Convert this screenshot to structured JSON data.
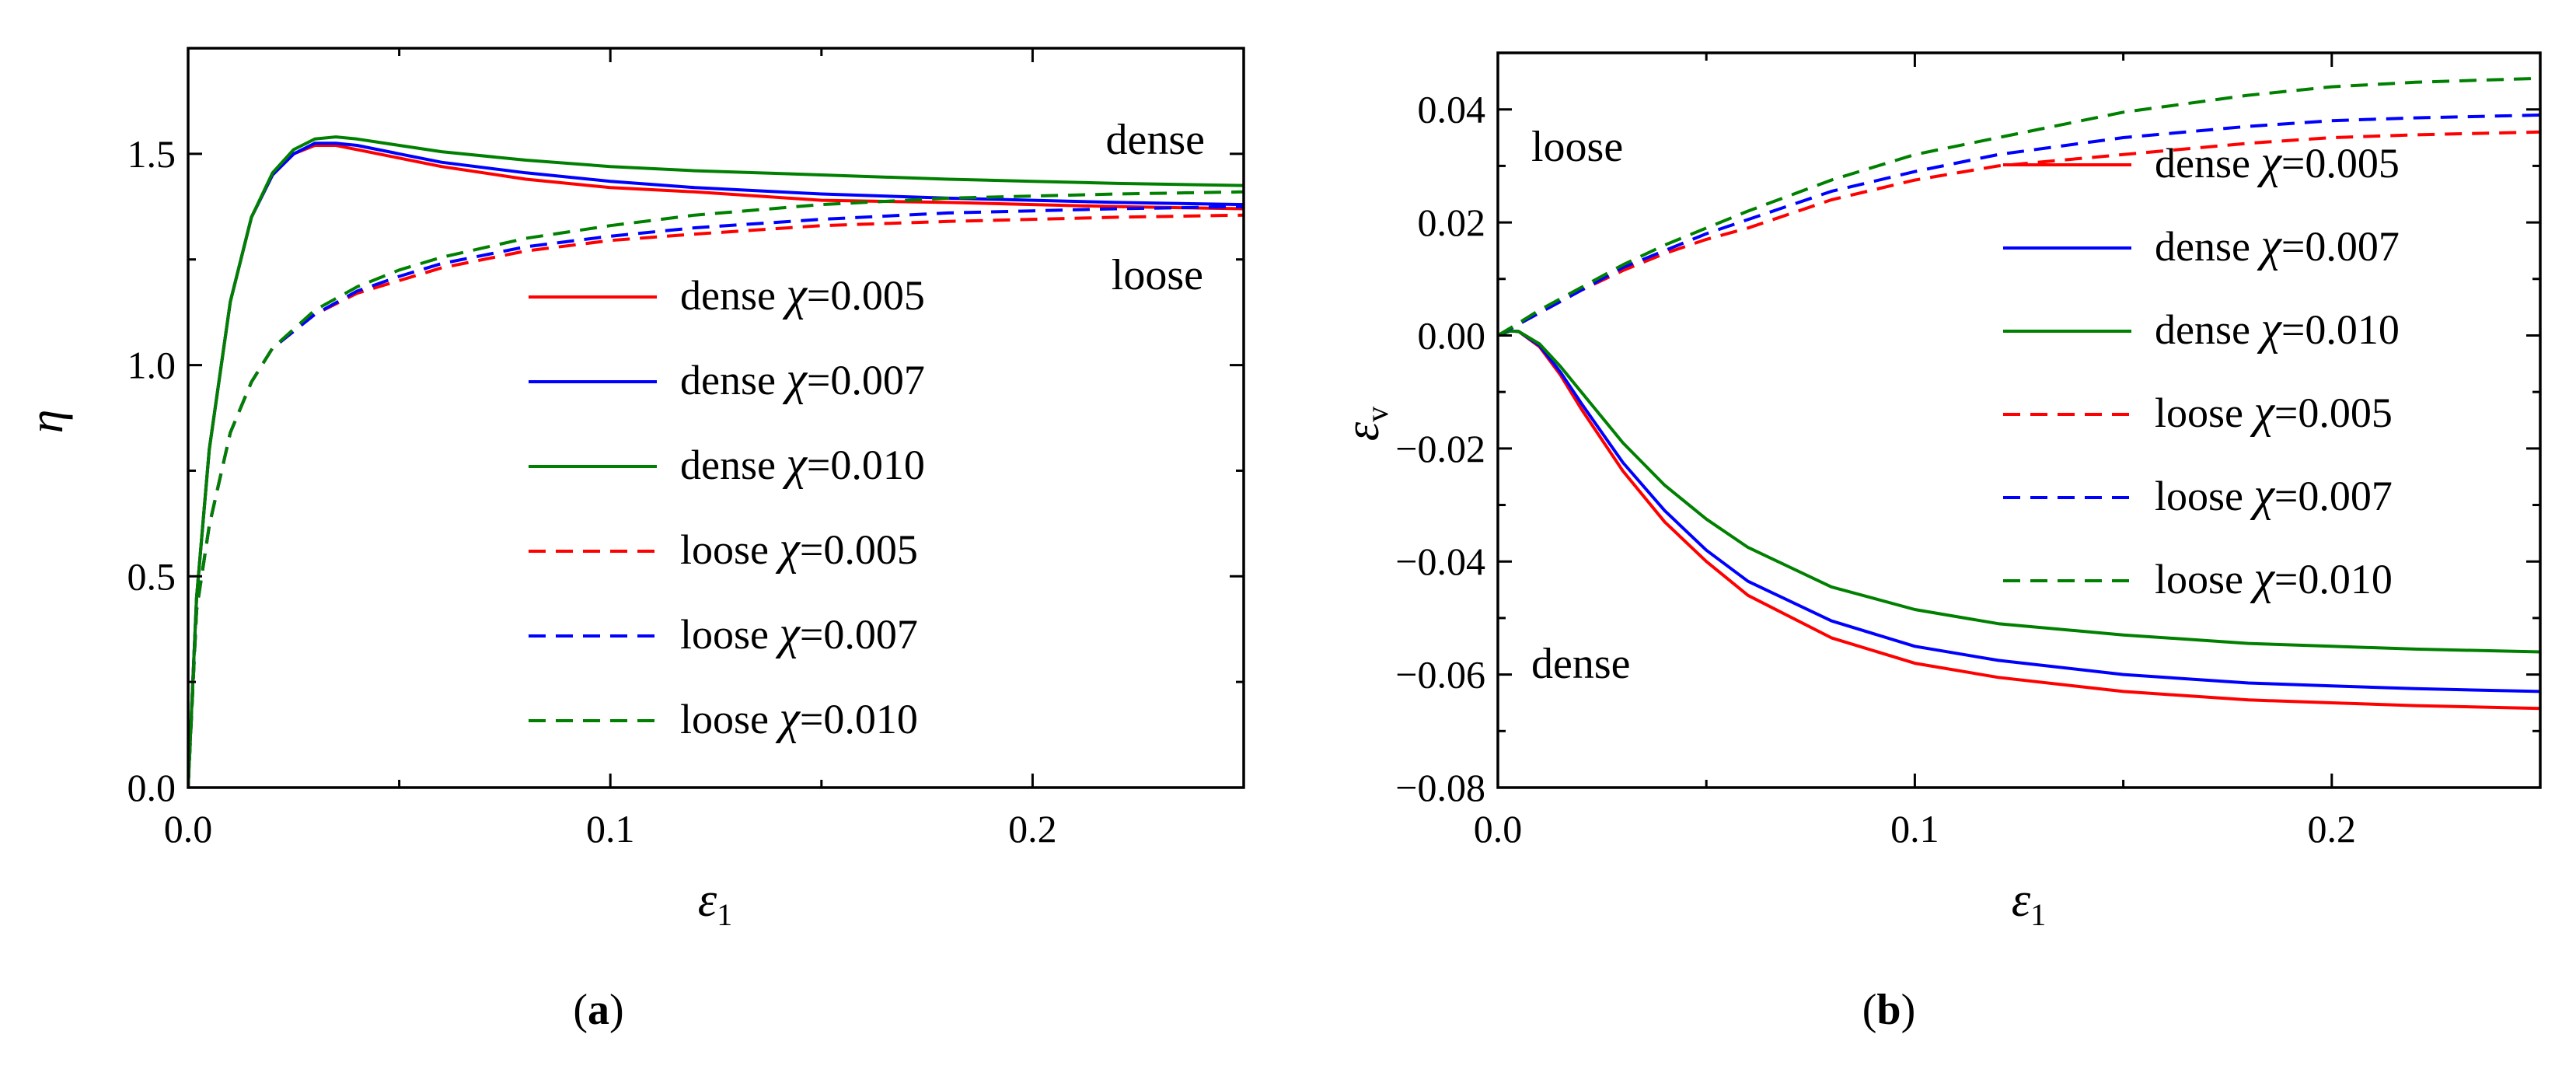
{
  "chart_data": [
    {
      "type": "line",
      "panel_label": "a",
      "xlabel_symbol": "ε",
      "xlabel_sub": "1",
      "ylabel_symbol": "η",
      "ylabel_sub": "",
      "xlim": [
        0,
        0.25
      ],
      "ylim": [
        0,
        1.75
      ],
      "xticks": [
        0,
        0.1,
        0.2
      ],
      "xtick_labels": [
        "0.0",
        "0.1",
        "0.2"
      ],
      "yticks": [
        0,
        0.5,
        1.0,
        1.5
      ],
      "ytick_labels": [
        "0.0",
        "0.5",
        "1.0",
        "1.5"
      ],
      "legend_position": "center-right",
      "annotations": [
        {
          "text": "dense",
          "x": 0.22,
          "y": 1.6
        },
        {
          "text": "loose",
          "x": 0.22,
          "y": 1.25
        }
      ],
      "series": [
        {
          "name": "dense χ=0.005",
          "prefix": "dense",
          "chi": "=0.005",
          "color": "#ff0000",
          "dash": "solid",
          "x": [
            0,
            0.002,
            0.005,
            0.01,
            0.015,
            0.02,
            0.025,
            0.03,
            0.035,
            0.04,
            0.05,
            0.06,
            0.08,
            0.1,
            0.12,
            0.15,
            0.18,
            0.2,
            0.22,
            0.25
          ],
          "y": [
            0,
            0.45,
            0.8,
            1.15,
            1.35,
            1.45,
            1.5,
            1.52,
            1.52,
            1.51,
            1.49,
            1.47,
            1.44,
            1.42,
            1.41,
            1.39,
            1.385,
            1.38,
            1.375,
            1.37
          ]
        },
        {
          "name": "dense χ=0.007",
          "prefix": "dense",
          "chi": "=0.007",
          "color": "#0000ff",
          "dash": "solid",
          "x": [
            0,
            0.002,
            0.005,
            0.01,
            0.015,
            0.02,
            0.025,
            0.03,
            0.035,
            0.04,
            0.05,
            0.06,
            0.08,
            0.1,
            0.12,
            0.15,
            0.18,
            0.2,
            0.22,
            0.25
          ],
          "y": [
            0,
            0.45,
            0.8,
            1.15,
            1.35,
            1.45,
            1.5,
            1.525,
            1.525,
            1.52,
            1.5,
            1.48,
            1.455,
            1.435,
            1.42,
            1.405,
            1.395,
            1.39,
            1.385,
            1.38
          ]
        },
        {
          "name": "dense χ=0.010",
          "prefix": "dense",
          "chi": "=0.010",
          "color": "#008000",
          "dash": "solid",
          "x": [
            0,
            0.002,
            0.005,
            0.01,
            0.015,
            0.02,
            0.025,
            0.03,
            0.035,
            0.04,
            0.05,
            0.06,
            0.08,
            0.1,
            0.12,
            0.15,
            0.18,
            0.2,
            0.22,
            0.25
          ],
          "y": [
            0,
            0.45,
            0.8,
            1.15,
            1.35,
            1.455,
            1.51,
            1.535,
            1.54,
            1.535,
            1.52,
            1.505,
            1.485,
            1.47,
            1.46,
            1.45,
            1.44,
            1.435,
            1.43,
            1.425
          ]
        },
        {
          "name": "loose χ=0.005",
          "prefix": "loose",
          "chi": "=0.005",
          "color": "#ff0000",
          "dash": "dashed",
          "x": [
            0,
            0.002,
            0.005,
            0.01,
            0.015,
            0.02,
            0.03,
            0.04,
            0.05,
            0.06,
            0.08,
            0.1,
            0.12,
            0.15,
            0.18,
            0.2,
            0.22,
            0.25
          ],
          "y": [
            0,
            0.42,
            0.62,
            0.84,
            0.96,
            1.04,
            1.12,
            1.17,
            1.2,
            1.23,
            1.27,
            1.295,
            1.31,
            1.33,
            1.34,
            1.345,
            1.35,
            1.355
          ]
        },
        {
          "name": "loose χ=0.007",
          "prefix": "loose",
          "chi": "=0.007",
          "color": "#0000ff",
          "dash": "dashed",
          "x": [
            0,
            0.002,
            0.005,
            0.01,
            0.015,
            0.02,
            0.03,
            0.04,
            0.05,
            0.06,
            0.08,
            0.1,
            0.12,
            0.15,
            0.18,
            0.2,
            0.22,
            0.25
          ],
          "y": [
            0,
            0.42,
            0.62,
            0.84,
            0.96,
            1.04,
            1.12,
            1.175,
            1.21,
            1.24,
            1.28,
            1.305,
            1.325,
            1.345,
            1.36,
            1.365,
            1.37,
            1.375
          ]
        },
        {
          "name": "loose χ=0.010",
          "prefix": "loose",
          "chi": "=0.010",
          "color": "#008000",
          "dash": "dashed",
          "x": [
            0,
            0.002,
            0.005,
            0.01,
            0.015,
            0.02,
            0.03,
            0.04,
            0.05,
            0.06,
            0.08,
            0.1,
            0.12,
            0.15,
            0.18,
            0.2,
            0.22,
            0.25
          ],
          "y": [
            0,
            0.42,
            0.62,
            0.84,
            0.96,
            1.04,
            1.13,
            1.185,
            1.225,
            1.255,
            1.3,
            1.33,
            1.355,
            1.38,
            1.395,
            1.4,
            1.405,
            1.41
          ]
        }
      ]
    },
    {
      "type": "line",
      "panel_label": "b",
      "xlabel_symbol": "ε",
      "xlabel_sub": "1",
      "ylabel_symbol": "ε",
      "ylabel_sub": "v",
      "xlim": [
        0,
        0.25
      ],
      "ylim": [
        -0.08,
        0.05
      ],
      "xticks": [
        0,
        0.1,
        0.2
      ],
      "xtick_labels": [
        "0.0",
        "0.1",
        "0.2"
      ],
      "yticks": [
        -0.08,
        -0.06,
        -0.04,
        -0.02,
        0,
        0.02,
        0.04
      ],
      "ytick_labels": [
        "−0.08",
        "−0.06",
        "−0.04",
        "−0.02",
        "0.00",
        "0.02",
        "0.04"
      ],
      "legend_position": "upper-right",
      "annotations": [
        {
          "text": "loose",
          "x": 0.007,
          "y": 0.033
        },
        {
          "text": "dense",
          "x": 0.007,
          "y": -0.058
        }
      ],
      "series": [
        {
          "name": "dense χ=0.005",
          "prefix": "dense",
          "chi": "=0.005",
          "color": "#ff0000",
          "dash": "solid",
          "x": [
            0,
            0.003,
            0.005,
            0.01,
            0.015,
            0.02,
            0.03,
            0.04,
            0.05,
            0.06,
            0.08,
            0.1,
            0.12,
            0.15,
            0.18,
            0.2,
            0.22,
            0.25
          ],
          "y": [
            0,
            0.0008,
            0.0007,
            -0.002,
            -0.007,
            -0.013,
            -0.024,
            -0.033,
            -0.04,
            -0.046,
            -0.0535,
            -0.058,
            -0.0605,
            -0.063,
            -0.0645,
            -0.065,
            -0.0655,
            -0.066
          ]
        },
        {
          "name": "dense χ=0.007",
          "prefix": "dense",
          "chi": "=0.007",
          "color": "#0000ff",
          "dash": "solid",
          "x": [
            0,
            0.003,
            0.005,
            0.01,
            0.015,
            0.02,
            0.03,
            0.04,
            0.05,
            0.06,
            0.08,
            0.1,
            0.12,
            0.15,
            0.18,
            0.2,
            0.22,
            0.25
          ],
          "y": [
            0,
            0.0008,
            0.0007,
            -0.0018,
            -0.0065,
            -0.012,
            -0.0225,
            -0.031,
            -0.038,
            -0.0435,
            -0.0505,
            -0.055,
            -0.0575,
            -0.06,
            -0.0615,
            -0.062,
            -0.0625,
            -0.063
          ]
        },
        {
          "name": "dense χ=0.010",
          "prefix": "dense",
          "chi": "=0.010",
          "color": "#008000",
          "dash": "solid",
          "x": [
            0,
            0.003,
            0.005,
            0.01,
            0.015,
            0.02,
            0.03,
            0.04,
            0.05,
            0.06,
            0.08,
            0.1,
            0.12,
            0.15,
            0.18,
            0.2,
            0.22,
            0.25
          ],
          "y": [
            0,
            0.0008,
            0.0007,
            -0.0015,
            -0.0055,
            -0.01,
            -0.019,
            -0.0265,
            -0.0325,
            -0.0375,
            -0.0445,
            -0.0485,
            -0.051,
            -0.053,
            -0.0545,
            -0.055,
            -0.0555,
            -0.056
          ]
        },
        {
          "name": "loose χ=0.005",
          "prefix": "loose",
          "chi": "=0.005",
          "color": "#ff0000",
          "dash": "dashed",
          "x": [
            0,
            0.005,
            0.01,
            0.02,
            0.03,
            0.04,
            0.05,
            0.06,
            0.08,
            0.1,
            0.12,
            0.15,
            0.18,
            0.2,
            0.22,
            0.25
          ],
          "y": [
            0,
            0.002,
            0.004,
            0.008,
            0.0115,
            0.0145,
            0.017,
            0.019,
            0.024,
            0.0275,
            0.03,
            0.032,
            0.034,
            0.035,
            0.0355,
            0.036
          ]
        },
        {
          "name": "loose χ=0.007",
          "prefix": "loose",
          "chi": "=0.007",
          "color": "#0000ff",
          "dash": "dashed",
          "x": [
            0,
            0.005,
            0.01,
            0.02,
            0.03,
            0.04,
            0.05,
            0.06,
            0.08,
            0.1,
            0.12,
            0.15,
            0.18,
            0.2,
            0.22,
            0.25
          ],
          "y": [
            0,
            0.002,
            0.004,
            0.008,
            0.012,
            0.015,
            0.018,
            0.0205,
            0.0255,
            0.029,
            0.032,
            0.035,
            0.037,
            0.038,
            0.0385,
            0.039
          ]
        },
        {
          "name": "loose χ=0.010",
          "prefix": "loose",
          "chi": "=0.010",
          "color": "#008000",
          "dash": "dashed",
          "x": [
            0,
            0.005,
            0.01,
            0.02,
            0.03,
            0.04,
            0.05,
            0.06,
            0.08,
            0.1,
            0.12,
            0.15,
            0.18,
            0.2,
            0.22,
            0.25
          ],
          "y": [
            0,
            0.0022,
            0.0045,
            0.0085,
            0.0125,
            0.016,
            0.019,
            0.022,
            0.0275,
            0.032,
            0.035,
            0.0395,
            0.0425,
            0.044,
            0.0448,
            0.0455
          ]
        }
      ]
    }
  ]
}
